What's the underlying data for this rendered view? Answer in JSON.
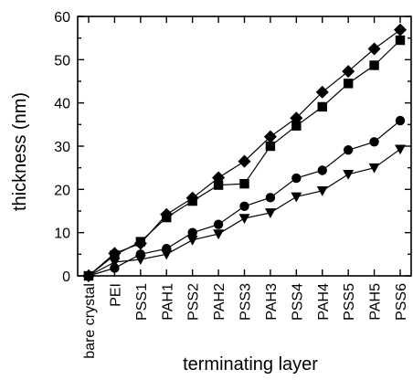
{
  "chart_data": {
    "type": "line",
    "title": "",
    "xlabel": "terminating layer",
    "ylabel": "thickness (nm)",
    "ylim": [
      0,
      60
    ],
    "yticks": [
      0,
      10,
      20,
      30,
      40,
      50,
      60
    ],
    "grid": false,
    "categories": [
      "bare crystal",
      "PEI",
      "PSS1",
      "PAH1",
      "PSS2",
      "PAH2",
      "PSS3",
      "PAH3",
      "PSS4",
      "PAH4",
      "PSS5",
      "PAH5",
      "PSS6"
    ],
    "series": [
      {
        "marker": "diamond",
        "values": [
          0,
          5.2,
          7.5,
          14.2,
          18.0,
          22.7,
          26.5,
          32.2,
          36.5,
          42.5,
          47.3,
          52.5,
          56.9
        ]
      },
      {
        "marker": "square",
        "values": [
          0,
          4.8,
          7.9,
          13.5,
          17.3,
          21.0,
          21.3,
          30.0,
          34.7,
          39.1,
          44.5,
          48.7,
          54.5
        ]
      },
      {
        "marker": "circle",
        "values": [
          0,
          1.8,
          5.0,
          6.3,
          10.0,
          11.9,
          16.1,
          18.1,
          22.6,
          24.4,
          29.1,
          31.0,
          35.9
        ]
      },
      {
        "marker": "triangle-down",
        "values": [
          0,
          3.2,
          3.8,
          5.0,
          8.3,
          9.7,
          13.3,
          14.6,
          18.3,
          19.7,
          23.5,
          25.0,
          29.3
        ]
      }
    ]
  }
}
